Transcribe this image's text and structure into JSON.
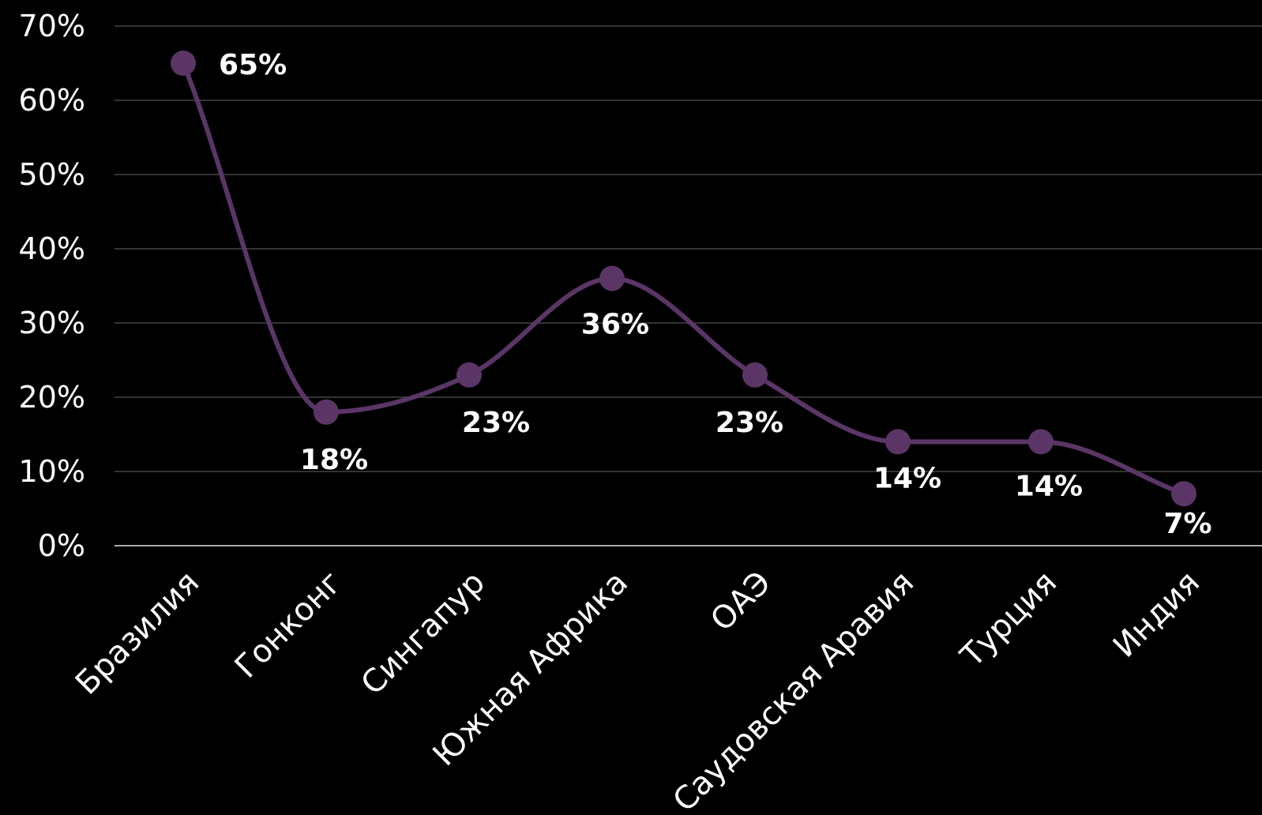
{
  "chart_data": {
    "type": "line",
    "title": "",
    "xlabel": "",
    "ylabel": "",
    "categories": [
      "Бразилия",
      "Гонконг",
      "Сингапур",
      "Южная Африка",
      "ОАЭ",
      "Саудовская Аравия",
      "Турция",
      "Индия"
    ],
    "series": [
      {
        "values": [
          65,
          18,
          23,
          36,
          23,
          14,
          14,
          7
        ],
        "color": "#5a3566"
      }
    ],
    "data_labels": [
      "65%",
      "18%",
      "23%",
      "36%",
      "23%",
      "14%",
      "14%",
      "7%"
    ],
    "ylim": [
      0,
      70
    ],
    "y_ticks": [
      "0%",
      "10%",
      "20%",
      "30%",
      "40%",
      "50%",
      "60%",
      "70%"
    ],
    "smooth": true,
    "grid": true,
    "legend": "none"
  },
  "colors": {
    "background": "#000000",
    "line": "#5a3566",
    "grid": "#444444",
    "baseline": "#aaaaaa",
    "text": "#ffffff"
  }
}
